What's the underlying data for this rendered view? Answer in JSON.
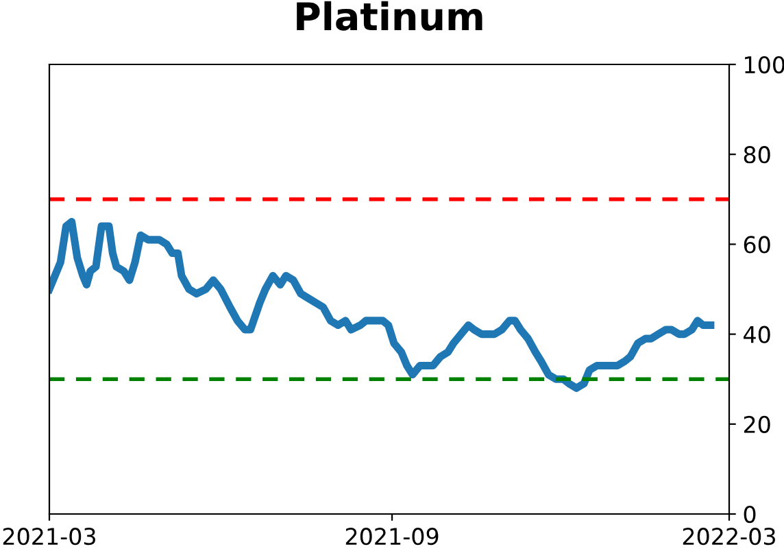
{
  "chart_data": {
    "type": "line",
    "title": "Platinum",
    "x": [
      "2021-03-01",
      "2021-03-04",
      "2021-03-07",
      "2021-03-10",
      "2021-03-13",
      "2021-03-16",
      "2021-03-19",
      "2021-03-21",
      "2021-03-23",
      "2021-03-26",
      "2021-03-29",
      "2021-04-02",
      "2021-04-04",
      "2021-04-06",
      "2021-04-10",
      "2021-04-13",
      "2021-04-16",
      "2021-04-19",
      "2021-04-23",
      "2021-04-26",
      "2021-04-29",
      "2021-05-03",
      "2021-05-06",
      "2021-05-09",
      "2021-05-11",
      "2021-05-15",
      "2021-05-19",
      "2021-05-24",
      "2021-05-28",
      "2021-06-01",
      "2021-06-06",
      "2021-06-10",
      "2021-06-14",
      "2021-06-17",
      "2021-06-22",
      "2021-06-25",
      "2021-06-29",
      "2021-07-03",
      "2021-07-06",
      "2021-07-10",
      "2021-07-14",
      "2021-07-18",
      "2021-07-22",
      "2021-07-26",
      "2021-07-30",
      "2021-08-03",
      "2021-08-07",
      "2021-08-10",
      "2021-08-15",
      "2021-08-18",
      "2021-08-22",
      "2021-08-27",
      "2021-08-30",
      "2021-09-02",
      "2021-09-06",
      "2021-09-09",
      "2021-09-12",
      "2021-09-16",
      "2021-09-20",
      "2021-09-23",
      "2021-09-27",
      "2021-10-01",
      "2021-10-04",
      "2021-10-08",
      "2021-10-12",
      "2021-10-15",
      "2021-10-19",
      "2021-10-23",
      "2021-10-26",
      "2021-10-30",
      "2021-11-03",
      "2021-11-06",
      "2021-11-09",
      "2021-11-13",
      "2021-11-17",
      "2021-11-20",
      "2021-11-24",
      "2021-11-28",
      "2021-12-02",
      "2021-12-05",
      "2021-12-09",
      "2021-12-13",
      "2021-12-16",
      "2021-12-20",
      "2021-12-24",
      "2021-12-28",
      "2021-12-31",
      "2022-01-04",
      "2022-01-07",
      "2022-01-11",
      "2022-01-15",
      "2022-01-18",
      "2022-01-22",
      "2022-01-26",
      "2022-01-29",
      "2022-02-02",
      "2022-02-05",
      "2022-02-09",
      "2022-02-12",
      "2022-02-15",
      "2022-02-19"
    ],
    "series": [
      {
        "color": "#1f77b4",
        "values": [
          50,
          53,
          56,
          64,
          65,
          57,
          53,
          51,
          54,
          55,
          64,
          64,
          58,
          55,
          54,
          52,
          56,
          62,
          61,
          61,
          61,
          60,
          58,
          58,
          53,
          50,
          49,
          50,
          52,
          50,
          46,
          43,
          41,
          41,
          47,
          50,
          53,
          51,
          53,
          52,
          49,
          48,
          47,
          46,
          43,
          42,
          43,
          41,
          42,
          43,
          43,
          43,
          42,
          38,
          36,
          33,
          31,
          33,
          33,
          33,
          35,
          36,
          38,
          40,
          42,
          41,
          40,
          40,
          40,
          41,
          43,
          43,
          41,
          39,
          36,
          34,
          31,
          30,
          30,
          29,
          28,
          29,
          32,
          33,
          33,
          33,
          33,
          34,
          35,
          38,
          39,
          39,
          40,
          41,
          41,
          40,
          40,
          41,
          43,
          42,
          42
        ]
      }
    ],
    "xlim": [
      "2021-03-01",
      "2022-03-01"
    ],
    "xticks": [
      {
        "value": "2021-03-01",
        "label": "2021-03"
      },
      {
        "value": "2021-09-01",
        "label": "2021-09"
      },
      {
        "value": "2022-03-01",
        "label": "2022-03"
      }
    ],
    "ylim": [
      0,
      100
    ],
    "yticks": [
      0,
      20,
      40,
      60,
      80,
      100
    ],
    "ref_lines": [
      {
        "axis": "y",
        "value": 70,
        "label": null,
        "color": "#ff0000",
        "line_style": "dashed"
      },
      {
        "axis": "y",
        "value": 30,
        "label": null,
        "color": "#008000",
        "line_style": "dashed"
      }
    ],
    "grid": false,
    "legend": false,
    "line_style": "solid",
    "marker": "none"
  }
}
